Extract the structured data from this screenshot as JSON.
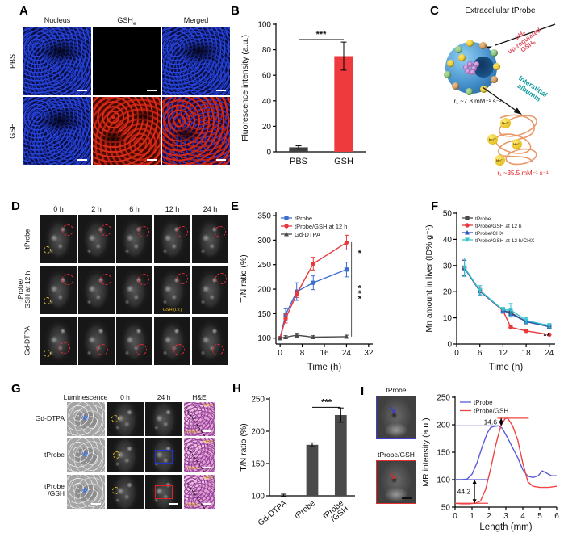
{
  "panel_labels": {
    "A": "A",
    "B": "B",
    "C": "C",
    "D": "D",
    "E": "E",
    "F": "F",
    "G": "G",
    "H": "H",
    "I": "I"
  },
  "panelA": {
    "col_header_nucleus": "Nucleus",
    "col_header_gsh_base": "GSH",
    "col_header_gsh_sub": "e",
    "col_header_merged": "Merged",
    "row_labels": [
      "PBS",
      "GSH"
    ]
  },
  "panelC": {
    "title": "Extracellular tProbe",
    "stimulus_lines": [
      "pHₑ",
      "up-regulated",
      "GSHₑ"
    ],
    "albumin_lines": [
      "Interstitial",
      "albumin"
    ],
    "r1_free": "r₁ ~7.8 mM⁻¹ s⁻¹",
    "r1_bound": "r₁ ~35.5 mM⁻¹ s⁻¹",
    "mn_label": "Mn²⁺"
  },
  "panelD": {
    "col_headers": [
      "0 h",
      "2 h",
      "6 h",
      "12 h",
      "24 h"
    ],
    "row_labels": [
      "tProbe",
      "tProbe/\nGSH at 12 h",
      "Gd-DTPA"
    ],
    "gsh_iv": "GSH (i.v.)"
  },
  "panelG": {
    "col_headers": [
      "Luminescence",
      "0 h",
      "24 h",
      "H&E"
    ],
    "row_labels": [
      "Gd-DTPA",
      "tProbe",
      "tProbe\n/GSH"
    ],
    "tumor": "Tumor",
    "normal": "Normal"
  },
  "panelI": {
    "img_labels": [
      "tProbe",
      "tProbe/GSH"
    ]
  },
  "chart_data": [
    {
      "id": "chartB",
      "type": "bar",
      "categories": [
        "PBS",
        "GSH"
      ],
      "values": [
        3.5,
        75
      ],
      "errors": [
        1.2,
        11
      ],
      "bar_colors": [
        "#3f3f3f",
        "#ee3a3c"
      ],
      "ylabel": "Fluorescence intensity (a.u.)",
      "ylim": [
        0,
        100
      ],
      "yticks": [
        0,
        20,
        40,
        60,
        80,
        100
      ],
      "annotations": [
        {
          "type": "bracket",
          "i1": 0,
          "i2": 1,
          "y": 88,
          "label": "***"
        }
      ]
    },
    {
      "id": "chartE",
      "type": "line",
      "x": [
        0,
        2,
        6,
        12,
        24
      ],
      "series": [
        {
          "name": "tProbe",
          "color": "#3b6cd0",
          "marker": "square",
          "values": [
            100,
            148,
            195,
            213,
            240
          ],
          "errors": [
            0,
            12,
            18,
            14,
            15
          ]
        },
        {
          "name": "tProbe/GSH at 12 h",
          "color": "#e8383b",
          "marker": "circle",
          "values": [
            100,
            140,
            190,
            252,
            295
          ],
          "errors": [
            0,
            9,
            7,
            13,
            15
          ]
        },
        {
          "name": "Gd-DTPA",
          "color": "#4a4a4a",
          "marker": "triangle",
          "values": [
            100,
            102,
            106,
            102,
            103
          ],
          "errors": [
            0,
            3,
            4,
            3,
            3
          ]
        }
      ],
      "xlabel": "Time (h)",
      "ylabel": "T/N ratio (%)",
      "xlim": [
        -1.5,
        33.5
      ],
      "xticks": [
        0,
        8,
        16,
        24,
        32
      ],
      "ylim": [
        88,
        355
      ],
      "yticks": [
        100,
        150,
        200,
        250,
        300,
        350
      ],
      "legend_fs": 7.5,
      "legend_lh": 10,
      "annotations": [
        {
          "type": "vline",
          "x": 25.8,
          "y1": 103,
          "y2": 296
        },
        {
          "type": "text",
          "x": 28.8,
          "y": 268,
          "label": "*"
        },
        {
          "type": "vtext",
          "x": 28.8,
          "y": 196,
          "label": "***"
        }
      ]
    },
    {
      "id": "chartF",
      "type": "line",
      "x": [
        2,
        6,
        12,
        14,
        18,
        24
      ],
      "series": [
        {
          "name": "tProbe",
          "color": "#4a4a4a",
          "marker": "square",
          "values": [
            29,
            20.2,
            12.8,
            12,
            8.5,
            6.6
          ],
          "errors": [
            3,
            1.5,
            1,
            1,
            0.8,
            0.6
          ]
        },
        {
          "name": "tProbe/GSH at 12 h",
          "color": "#e8383b",
          "marker": "circle",
          "values": [
            29,
            20.2,
            12.8,
            6.4,
            5,
            3.6
          ],
          "errors": [
            3,
            1.5,
            1,
            0.6,
            0.5,
            0.5
          ]
        },
        {
          "name": "tProbe/CHX",
          "color": "#2a52be",
          "marker": "triangle",
          "values": [
            29,
            20.3,
            12.9,
            11.5,
            8.6,
            6.7
          ],
          "errors": [
            3,
            1.5,
            1,
            1.2,
            0.8,
            0.6
          ]
        },
        {
          "name": "tProbe/GSH at 12 h/CHX",
          "color": "#35c4cc",
          "marker": "triangle-down",
          "values": [
            29.3,
            20.5,
            13,
            13,
            9,
            7
          ],
          "errors": [
            3.5,
            1.8,
            1,
            2.5,
            1,
            0.8
          ]
        }
      ],
      "xlabel": "Time (h)",
      "ylabel": "Mn amount in liver (ID% g⁻¹)",
      "xlim": [
        0,
        25.5
      ],
      "xticks": [
        0,
        6,
        12,
        18,
        24
      ],
      "ylim": [
        0,
        50
      ],
      "yticks": [
        0,
        10,
        20,
        30,
        40,
        50
      ],
      "legend_fs": 6.6,
      "legend_lh": 9,
      "annotations": [
        {
          "type": "text",
          "x": 23.3,
          "y": 2,
          "label": "**"
        }
      ]
    },
    {
      "id": "chartH",
      "type": "bar",
      "categories": [
        "Gd-DTPA",
        "tProbe",
        "tProbe\n/GSH"
      ],
      "values": [
        101,
        179,
        225
      ],
      "errors": [
        1.5,
        3,
        11
      ],
      "bar_colors": [
        "#4a4a4a",
        "#4a4a4a",
        "#4a4a4a"
      ],
      "ylabel": "T/N ratio (%)",
      "ylim": [
        100,
        250
      ],
      "yticks": [
        100,
        150,
        200,
        250
      ],
      "rotate_labels": -40,
      "annotations": [
        {
          "type": "bracket",
          "i1": 1,
          "i2": 2,
          "y": 237,
          "label": "***"
        }
      ]
    },
    {
      "id": "chartI",
      "type": "line",
      "series": [
        {
          "name": "tProbe",
          "color": "#5b5bd6",
          "marker": "none",
          "xy": [
            [
              0,
              100
            ],
            [
              0.4,
              100
            ],
            [
              0.7,
              101
            ],
            [
              1.0,
              110
            ],
            [
              1.3,
              131
            ],
            [
              1.6,
              160
            ],
            [
              1.9,
              185
            ],
            [
              2.1,
              195
            ],
            [
              2.3,
              197
            ],
            [
              2.6,
              198
            ],
            [
              2.8,
              193
            ],
            [
              3.1,
              176
            ],
            [
              3.4,
              158
            ],
            [
              3.7,
              140
            ],
            [
              4.0,
              118
            ],
            [
              4.3,
              106
            ],
            [
              4.6,
              104
            ],
            [
              4.9,
              107
            ],
            [
              5.15,
              116
            ],
            [
              5.4,
              112
            ],
            [
              5.7,
              107
            ],
            [
              6,
              107
            ]
          ]
        },
        {
          "name": "tProbe/GSH",
          "color": "#ef4444",
          "marker": "none",
          "xy": [
            [
              0,
              57
            ],
            [
              0.4,
              56
            ],
            [
              0.8,
              56
            ],
            [
              1.2,
              57
            ],
            [
              1.5,
              61
            ],
            [
              1.8,
              82
            ],
            [
              2.1,
              120
            ],
            [
              2.4,
              163
            ],
            [
              2.7,
              198
            ],
            [
              2.95,
              211
            ],
            [
              3.1,
              212
            ],
            [
              3.4,
              198
            ],
            [
              3.7,
              172
            ],
            [
              4.0,
              130
            ],
            [
              4.3,
              96
            ],
            [
              4.6,
              88
            ],
            [
              5.0,
              86
            ],
            [
              5.5,
              86
            ],
            [
              6,
              88
            ]
          ]
        }
      ],
      "xlabel": "Length (mm)",
      "ylabel": "MR intensity (a.u.)",
      "xlim": [
        0,
        6
      ],
      "xticks": [
        0,
        1,
        2,
        3,
        4,
        5,
        6
      ],
      "ylim": [
        50,
        250
      ],
      "yticks": [
        50,
        100,
        150,
        200,
        250
      ],
      "legend_fs": 8,
      "legend_lh": 10.5,
      "annotations": [
        {
          "type": "hline",
          "x1": 0,
          "x2": 1.95,
          "y": 100,
          "color": "#5b5bd6"
        },
        {
          "type": "hline",
          "x1": 0.08,
          "x2": 2.62,
          "y": 198,
          "color": "#5b5bd6"
        },
        {
          "type": "hline",
          "x1": 2.5,
          "x2": 4.35,
          "y": 212,
          "color": "#ef4444"
        },
        {
          "type": "hline",
          "x1": 0.05,
          "x2": 1.95,
          "y": 57,
          "color": "#ef4444"
        },
        {
          "type": "varrow",
          "x": 2.72,
          "y1": 198,
          "y2": 212,
          "label": "14.6"
        },
        {
          "type": "varrow",
          "x": 1.15,
          "y1": 57,
          "y2": 100,
          "label": "44.2"
        }
      ]
    }
  ]
}
